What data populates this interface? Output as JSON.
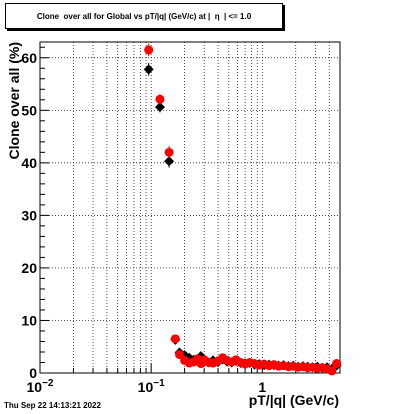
{
  "title": "Clone  over all for Global vs pT/|q| (GeV/c) at |  η  | <= 1.0",
  "timestamp": "Thu Sep 22 14:13:21 2022",
  "chart_data": {
    "type": "scatter",
    "title": "Clone  over all for Global vs pT/|q| (GeV/c) at |  η  | <= 1.0",
    "xlabel": "pT/|q| (GeV/c)",
    "ylabel": "Clone  over all (%)",
    "xscale": "log",
    "xlim": [
      0.01,
      5
    ],
    "ylim": [
      0,
      63
    ],
    "grid": true,
    "x_ticks": [
      {
        "value": 0.01,
        "base": "10",
        "exp": "−2"
      },
      {
        "value": 0.1,
        "base": "10",
        "exp": "−1"
      },
      {
        "value": 1,
        "base": "1",
        "exp": ""
      }
    ],
    "y_ticks": [
      {
        "value": 0,
        "label": "0"
      },
      {
        "value": 10,
        "label": "10"
      },
      {
        "value": 20,
        "label": "20"
      },
      {
        "value": 30,
        "label": "30"
      },
      {
        "value": 40,
        "label": "40"
      },
      {
        "value": 50,
        "label": "50"
      },
      {
        "value": 60,
        "label": "60"
      }
    ],
    "series": [
      {
        "color": "#000000",
        "marker": "diamond",
        "points": [
          {
            "x": 0.095,
            "y": 57.8,
            "err": 1.2
          },
          {
            "x": 0.12,
            "y": 50.6,
            "err": 1.0
          },
          {
            "x": 0.145,
            "y": 40.3,
            "err": 1.2
          },
          {
            "x": 0.165,
            "y": 6.3,
            "err": 0.5
          },
          {
            "x": 0.18,
            "y": 3.9,
            "err": 0.4
          },
          {
            "x": 0.2,
            "y": 3.4,
            "err": 0.3
          },
          {
            "x": 0.22,
            "y": 2.9,
            "err": 0.3
          },
          {
            "x": 0.24,
            "y": 2.5,
            "err": 0.3
          },
          {
            "x": 0.26,
            "y": 2.3,
            "err": 0.3
          },
          {
            "x": 0.28,
            "y": 3.2,
            "err": 0.3
          },
          {
            "x": 0.3,
            "y": 2.2,
            "err": 0.3
          },
          {
            "x": 0.33,
            "y": 2.0,
            "err": 0.3
          },
          {
            "x": 0.36,
            "y": 2.4,
            "err": 0.3
          },
          {
            "x": 0.4,
            "y": 2.1,
            "err": 0.3
          },
          {
            "x": 0.44,
            "y": 2.6,
            "err": 0.3
          },
          {
            "x": 0.48,
            "y": 2.2,
            "err": 0.3
          },
          {
            "x": 0.53,
            "y": 2.0,
            "err": 0.3
          },
          {
            "x": 0.58,
            "y": 2.3,
            "err": 0.3
          },
          {
            "x": 0.64,
            "y": 1.9,
            "err": 0.3
          },
          {
            "x": 0.7,
            "y": 1.8,
            "err": 0.3
          },
          {
            "x": 0.77,
            "y": 1.9,
            "err": 0.3
          },
          {
            "x": 0.85,
            "y": 1.6,
            "err": 0.3
          },
          {
            "x": 0.94,
            "y": 1.7,
            "err": 0.3
          },
          {
            "x": 1.04,
            "y": 1.5,
            "err": 0.3
          },
          {
            "x": 1.15,
            "y": 1.6,
            "err": 0.3
          },
          {
            "x": 1.27,
            "y": 1.5,
            "err": 0.3
          },
          {
            "x": 1.4,
            "y": 1.4,
            "err": 0.3
          },
          {
            "x": 1.55,
            "y": 1.5,
            "err": 0.3
          },
          {
            "x": 1.72,
            "y": 1.3,
            "err": 0.3
          },
          {
            "x": 1.9,
            "y": 1.4,
            "err": 0.3
          },
          {
            "x": 2.1,
            "y": 1.2,
            "err": 0.3
          },
          {
            "x": 2.32,
            "y": 1.3,
            "err": 0.3
          },
          {
            "x": 2.56,
            "y": 1.2,
            "err": 0.3
          },
          {
            "x": 2.83,
            "y": 1.1,
            "err": 0.3
          },
          {
            "x": 3.13,
            "y": 1.2,
            "err": 0.3
          },
          {
            "x": 3.46,
            "y": 1.0,
            "err": 0.3
          },
          {
            "x": 3.82,
            "y": 1.1,
            "err": 0.3
          },
          {
            "x": 4.22,
            "y": 0.8,
            "err": 0.3
          },
          {
            "x": 4.66,
            "y": 1.4,
            "err": 0.3
          }
        ]
      },
      {
        "color": "#ff0000",
        "marker": "circle",
        "points": [
          {
            "x": 0.095,
            "y": 61.5,
            "err": 1.2
          },
          {
            "x": 0.12,
            "y": 52.1,
            "err": 1.0
          },
          {
            "x": 0.145,
            "y": 42.0,
            "err": 1.2
          },
          {
            "x": 0.165,
            "y": 6.5,
            "err": 0.5
          },
          {
            "x": 0.18,
            "y": 3.5,
            "err": 0.4
          },
          {
            "x": 0.2,
            "y": 2.4,
            "err": 0.3
          },
          {
            "x": 0.22,
            "y": 1.9,
            "err": 0.3
          },
          {
            "x": 0.24,
            "y": 2.1,
            "err": 0.3
          },
          {
            "x": 0.26,
            "y": 2.7,
            "err": 0.3
          },
          {
            "x": 0.28,
            "y": 1.8,
            "err": 0.3
          },
          {
            "x": 0.3,
            "y": 2.5,
            "err": 0.3
          },
          {
            "x": 0.33,
            "y": 2.0,
            "err": 0.3
          },
          {
            "x": 0.36,
            "y": 1.9,
            "err": 0.3
          },
          {
            "x": 0.4,
            "y": 2.3,
            "err": 0.3
          },
          {
            "x": 0.44,
            "y": 2.9,
            "err": 0.3
          },
          {
            "x": 0.48,
            "y": 2.4,
            "err": 0.3
          },
          {
            "x": 0.53,
            "y": 2.1,
            "err": 0.3
          },
          {
            "x": 0.58,
            "y": 2.5,
            "err": 0.3
          },
          {
            "x": 0.64,
            "y": 2.0,
            "err": 0.3
          },
          {
            "x": 0.7,
            "y": 1.7,
            "err": 0.3
          },
          {
            "x": 0.77,
            "y": 2.0,
            "err": 0.3
          },
          {
            "x": 0.85,
            "y": 1.8,
            "err": 0.3
          },
          {
            "x": 0.94,
            "y": 1.5,
            "err": 0.3
          },
          {
            "x": 1.04,
            "y": 1.7,
            "err": 0.3
          },
          {
            "x": 1.15,
            "y": 1.4,
            "err": 0.3
          },
          {
            "x": 1.27,
            "y": 1.6,
            "err": 0.3
          },
          {
            "x": 1.4,
            "y": 1.3,
            "err": 0.3
          },
          {
            "x": 1.55,
            "y": 1.4,
            "err": 0.3
          },
          {
            "x": 1.72,
            "y": 1.2,
            "err": 0.3
          },
          {
            "x": 1.9,
            "y": 1.3,
            "err": 0.3
          },
          {
            "x": 2.1,
            "y": 1.1,
            "err": 0.3
          },
          {
            "x": 2.32,
            "y": 1.2,
            "err": 0.3
          },
          {
            "x": 2.56,
            "y": 1.0,
            "err": 0.3
          },
          {
            "x": 2.83,
            "y": 1.1,
            "err": 0.3
          },
          {
            "x": 3.13,
            "y": 0.9,
            "err": 0.3
          },
          {
            "x": 3.46,
            "y": 1.0,
            "err": 0.3
          },
          {
            "x": 3.82,
            "y": 0.8,
            "err": 0.3
          },
          {
            "x": 4.22,
            "y": 0.4,
            "err": 0.3
          },
          {
            "x": 4.66,
            "y": 1.8,
            "err": 0.3
          }
        ]
      }
    ]
  }
}
